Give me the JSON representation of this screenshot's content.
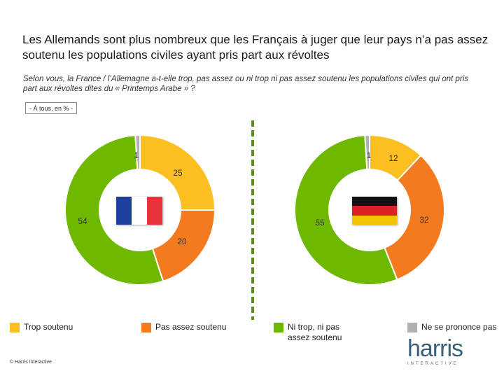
{
  "title": "Les Allemands sont plus nombreux que les Français à juger que leur pays n’a pas assez soutenu les populations civiles ayant pris part aux révoltes",
  "subtitle": "Selon vous, la France / l’Allemagne a-t-elle trop, pas assez ou ni trop ni pas assez soutenu les populations civiles qui ont pris part aux révoltes dites du « Printemps Arabe » ?",
  "base_label": "- À tous, en % -",
  "copyright": "© Harris Interactive",
  "logo": {
    "name": "harris",
    "tagline": "INTERACTIVE"
  },
  "colors": {
    "trop": "#fbbf22",
    "pas_assez": "#f47a20",
    "ni_trop": "#6fb800",
    "nspp": "#b0b0b0",
    "divider": "#5a8f1c",
    "flag_fr": [
      "#1e3f9b",
      "#ffffff",
      "#e8333a"
    ],
    "flag_de": [
      "#111111",
      "#dd1f26",
      "#f4c300"
    ]
  },
  "chart_data": [
    {
      "type": "pie",
      "variant": "donut",
      "country": "France",
      "categories": [
        "Trop soutenu",
        "Pas assez soutenu",
        "Ni trop, ni pas assez soutenu",
        "Ne se prononce pas"
      ],
      "values": [
        25,
        20,
        54,
        1
      ],
      "value_labels": [
        "25",
        "20",
        "54",
        "1"
      ]
    },
    {
      "type": "pie",
      "variant": "donut",
      "country": "Allemagne",
      "categories": [
        "Trop soutenu",
        "Pas assez soutenu",
        "Ni trop, ni pas assez soutenu",
        "Ne se prononce pas"
      ],
      "values": [
        12,
        32,
        55,
        1
      ],
      "value_labels": [
        "12",
        "32",
        "55",
        "1"
      ]
    }
  ],
  "legend": [
    {
      "label": "Trop soutenu",
      "color_key": "trop"
    },
    {
      "label": "Pas assez soutenu",
      "color_key": "pas_assez"
    },
    {
      "label": "Ni trop, ni pas assez soutenu",
      "color_key": "ni_trop"
    },
    {
      "label": "Ne se prononce pas",
      "color_key": "nspp"
    }
  ]
}
